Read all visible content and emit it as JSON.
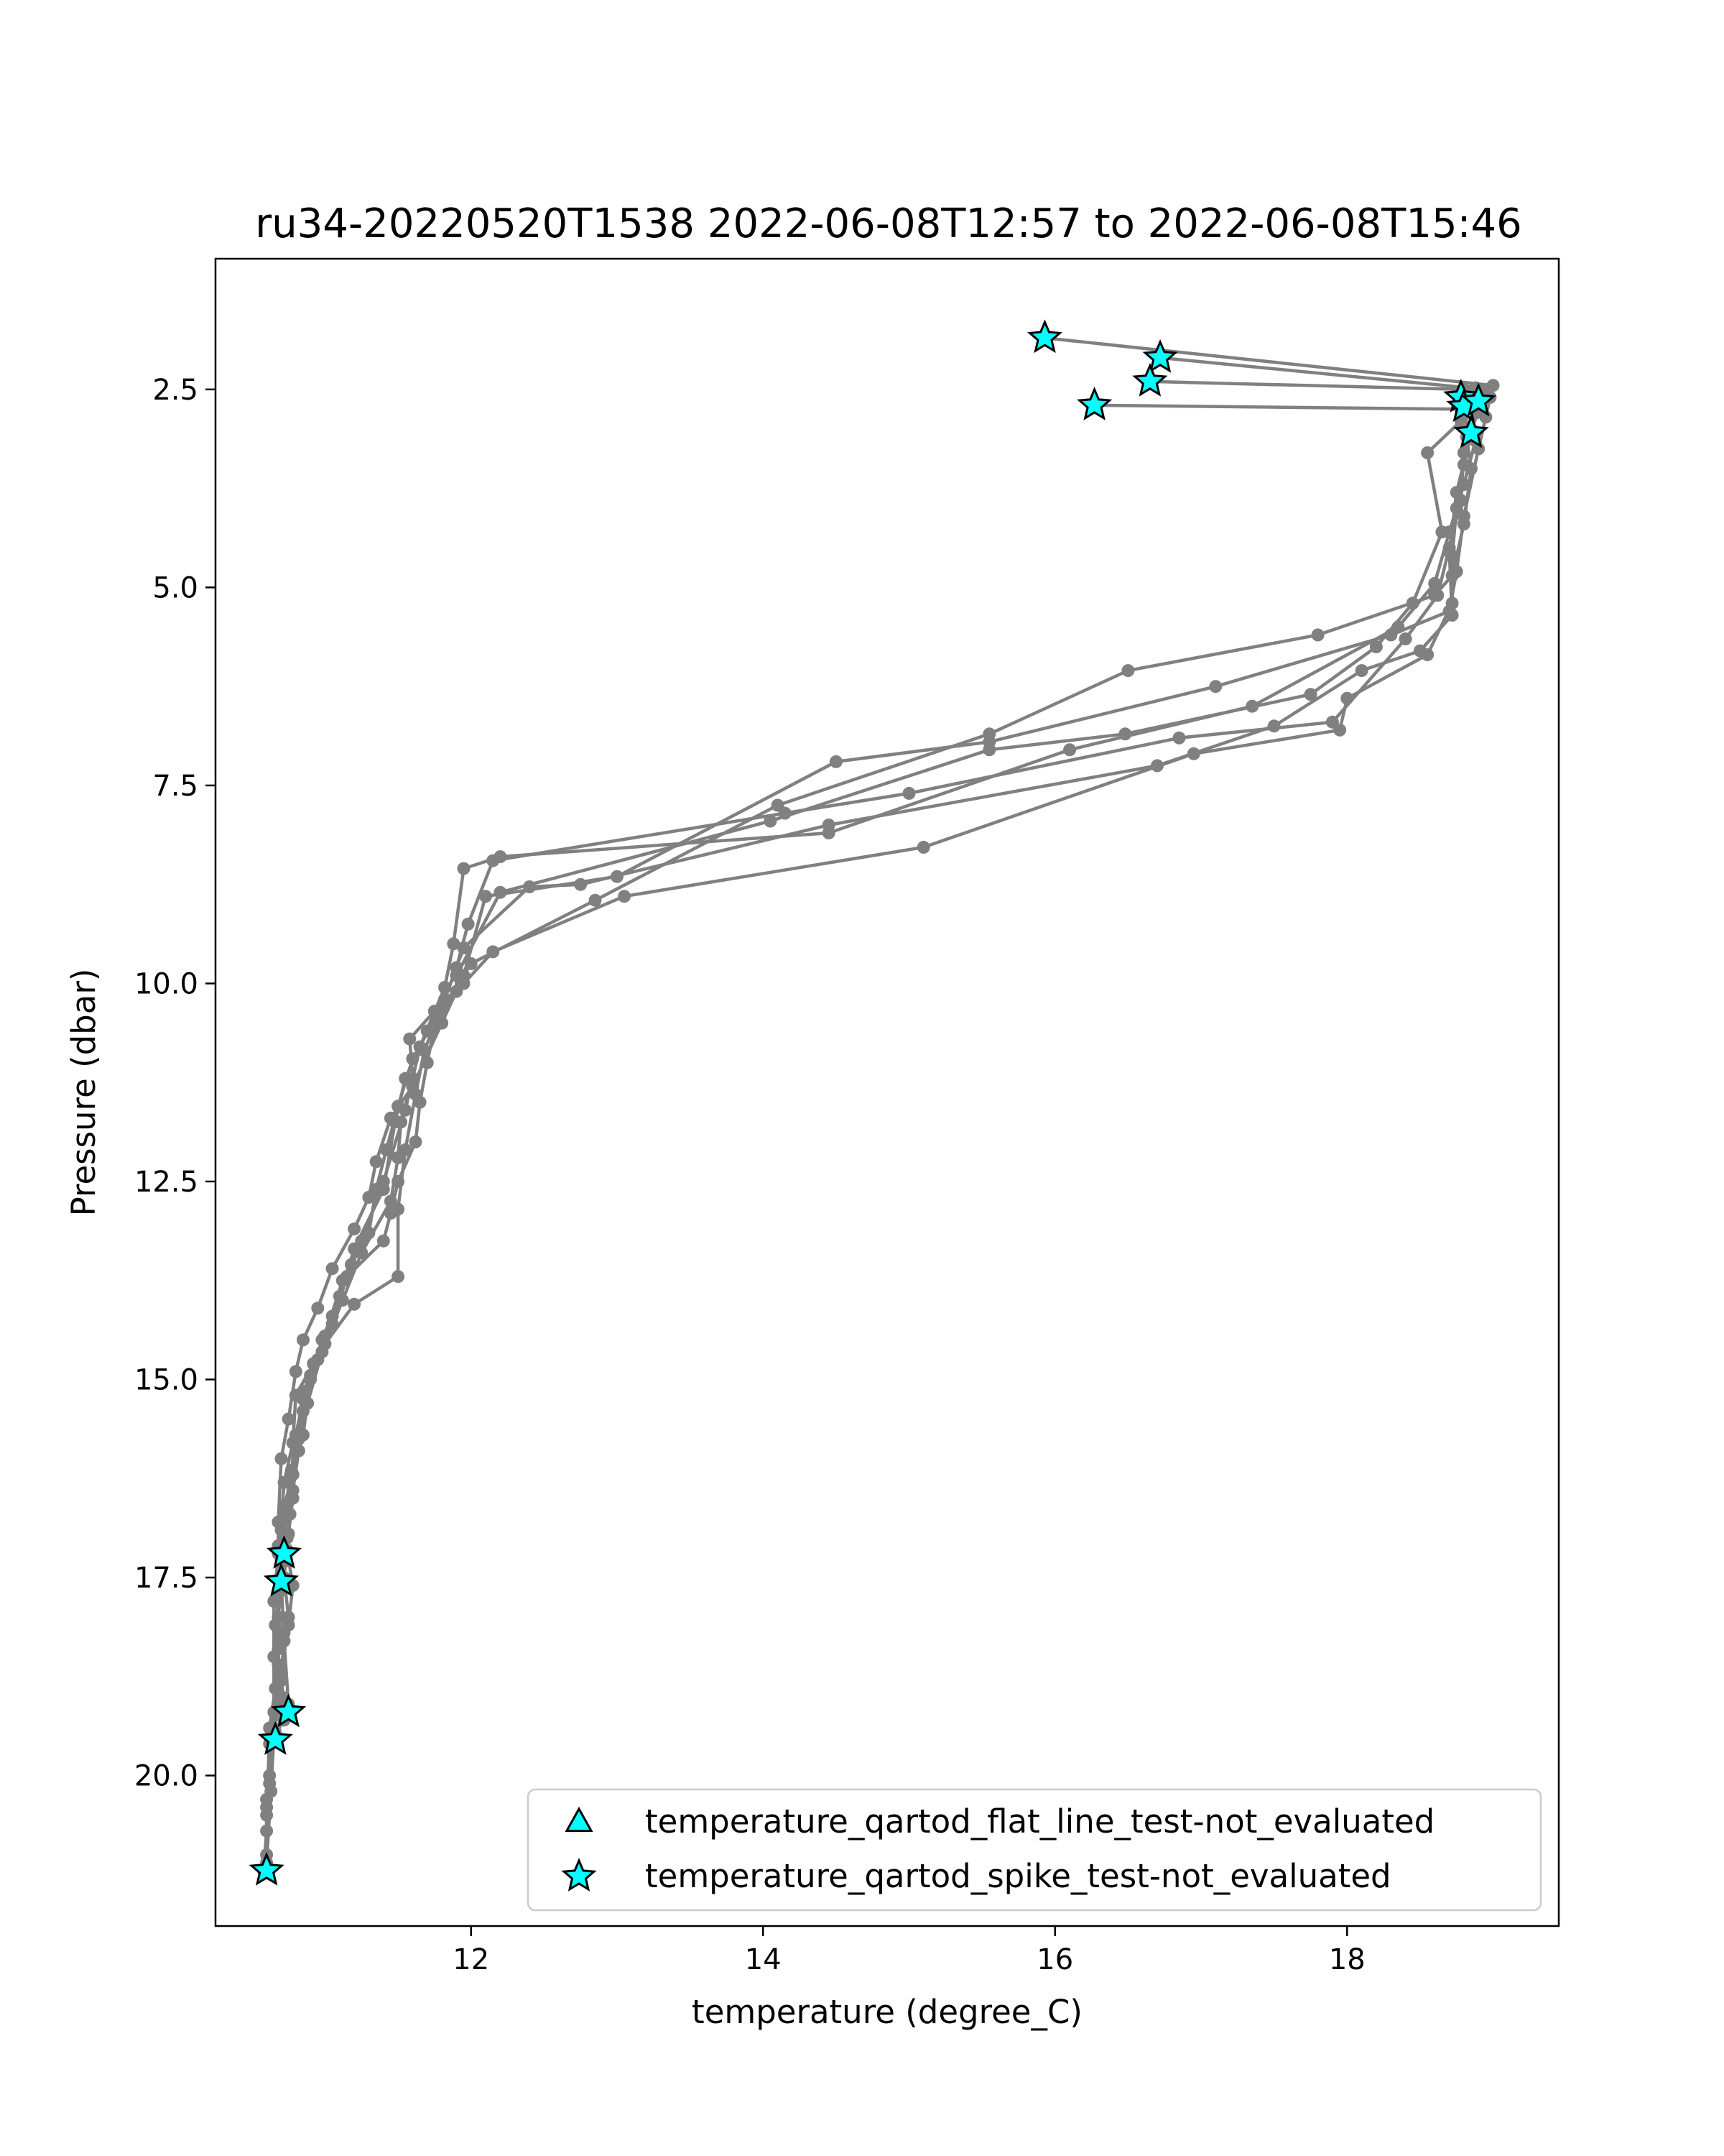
{
  "chart_data": {
    "type": "line",
    "title": "ru34-20220520T1538 2022-06-08T12:57 to 2022-06-08T15:46",
    "xlabel": "temperature (degree_C)",
    "ylabel": "Pressure (dbar)",
    "xlim": [
      10.25,
      19.45
    ],
    "ylim": [
      21.9,
      0.85
    ],
    "y_inverted": true,
    "x_ticks": [
      "12",
      "14",
      "16",
      "18"
    ],
    "y_ticks": [
      "2.5",
      "5.0",
      "7.5",
      "10.0",
      "12.5",
      "15.0",
      "17.5",
      "20.0"
    ],
    "grid": false,
    "legend_position": "lower-right",
    "colors": {
      "line": "#808080",
      "marker": "#808080",
      "flag": "#00ffff",
      "flag_edge": "#000000"
    },
    "series": [
      {
        "points": [
          [
            15.93,
            1.85
          ],
          [
            19.0,
            2.45
          ],
          [
            18.98,
            2.6
          ],
          [
            18.95,
            2.85
          ],
          [
            18.9,
            3.25
          ],
          [
            18.8,
            4.1
          ],
          [
            18.75,
            4.8
          ],
          [
            18.7,
            5.3
          ],
          [
            18.3,
            5.6
          ],
          [
            17.1,
            6.25
          ],
          [
            15.55,
            6.95
          ],
          [
            14.5,
            7.2
          ],
          [
            13.0,
            8.65
          ],
          [
            12.1,
            8.9
          ],
          [
            11.95,
            9.9
          ],
          [
            11.8,
            10.5
          ],
          [
            11.6,
            11.3
          ],
          [
            11.45,
            11.7
          ],
          [
            11.35,
            12.25
          ],
          [
            11.3,
            12.7
          ],
          [
            11.2,
            13.1
          ],
          [
            11.05,
            13.6
          ],
          [
            10.95,
            14.1
          ],
          [
            10.85,
            14.5
          ],
          [
            10.8,
            14.9
          ],
          [
            10.75,
            15.5
          ],
          [
            10.7,
            16.0
          ],
          [
            10.68,
            16.8
          ],
          [
            10.68,
            17.2
          ],
          [
            10.65,
            17.8
          ],
          [
            10.65,
            18.5
          ],
          [
            10.65,
            19.2
          ],
          [
            10.62,
            19.6
          ],
          [
            10.6,
            20.5
          ],
          [
            10.6,
            21.2
          ]
        ]
      },
      {
        "points": [
          [
            16.72,
            2.1
          ],
          [
            18.95,
            2.5
          ],
          [
            18.88,
            2.8
          ],
          [
            18.82,
            3.1
          ],
          [
            18.85,
            3.5
          ],
          [
            18.8,
            4.2
          ],
          [
            18.72,
            4.85
          ],
          [
            18.6,
            5.1
          ],
          [
            17.8,
            5.6
          ],
          [
            16.5,
            6.05
          ],
          [
            15.55,
            6.85
          ],
          [
            14.1,
            7.75
          ],
          [
            12.85,
            8.95
          ],
          [
            12.0,
            9.75
          ],
          [
            11.7,
            10.6
          ],
          [
            11.55,
            11.2
          ],
          [
            11.48,
            11.75
          ],
          [
            11.4,
            12.6
          ],
          [
            11.2,
            13.35
          ],
          [
            11.1,
            13.95
          ],
          [
            10.98,
            14.5
          ],
          [
            10.9,
            15.0
          ],
          [
            10.85,
            15.7
          ],
          [
            10.78,
            16.2
          ],
          [
            10.72,
            16.6
          ],
          [
            10.7,
            16.9
          ],
          [
            10.72,
            17.3
          ],
          [
            10.7,
            17.6
          ],
          [
            10.68,
            18.0
          ],
          [
            10.68,
            18.6
          ],
          [
            10.7,
            19.0
          ],
          [
            10.72,
            19.3
          ],
          [
            10.65,
            19.5
          ],
          [
            10.63,
            20.2
          ],
          [
            10.6,
            21.1
          ]
        ]
      },
      {
        "points": [
          [
            16.65,
            2.4
          ],
          [
            18.8,
            2.5
          ],
          [
            18.78,
            2.9
          ],
          [
            18.55,
            3.3
          ],
          [
            18.65,
            4.3
          ],
          [
            18.45,
            5.2
          ],
          [
            18.2,
            5.75
          ],
          [
            17.75,
            6.35
          ],
          [
            16.48,
            6.85
          ],
          [
            15.55,
            7.05
          ],
          [
            14.05,
            7.95
          ],
          [
            12.2,
            8.85
          ],
          [
            11.9,
            9.9
          ],
          [
            11.9,
            10.1
          ],
          [
            11.75,
            10.55
          ],
          [
            11.7,
            11.0
          ],
          [
            11.65,
            11.5
          ],
          [
            11.62,
            12.0
          ],
          [
            11.5,
            12.5
          ],
          [
            11.45,
            12.9
          ],
          [
            11.4,
            13.25
          ],
          [
            11.15,
            13.7
          ],
          [
            11.05,
            14.3
          ],
          [
            10.92,
            14.8
          ],
          [
            10.8,
            15.2
          ],
          [
            10.78,
            15.8
          ],
          [
            10.72,
            16.3
          ],
          [
            10.7,
            16.8
          ],
          [
            10.68,
            17.1
          ],
          [
            10.7,
            17.5
          ],
          [
            10.66,
            18.1
          ],
          [
            10.66,
            18.9
          ],
          [
            10.62,
            19.4
          ],
          [
            10.6,
            20.7
          ],
          [
            10.58,
            21.2
          ]
        ]
      },
      {
        "points": [
          [
            16.27,
            2.7
          ],
          [
            18.78,
            2.75
          ],
          [
            18.92,
            2.62
          ],
          [
            18.85,
            3.05
          ],
          [
            18.75,
            3.8
          ],
          [
            18.7,
            4.55
          ],
          [
            18.72,
            5.35
          ],
          [
            18.5,
            5.8
          ],
          [
            18.1,
            6.05
          ],
          [
            17.5,
            6.75
          ],
          [
            16.7,
            7.25
          ],
          [
            14.45,
            8.0
          ],
          [
            12.75,
            8.75
          ],
          [
            12.4,
            8.78
          ],
          [
            11.95,
            9.55
          ],
          [
            11.82,
            10.2
          ],
          [
            11.68,
            10.85
          ],
          [
            11.62,
            11.4
          ],
          [
            11.55,
            12.1
          ],
          [
            11.5,
            12.85
          ],
          [
            11.5,
            13.7
          ],
          [
            11.2,
            14.05
          ],
          [
            11.0,
            14.55
          ],
          [
            10.85,
            15.15
          ],
          [
            10.8,
            15.85
          ],
          [
            10.78,
            16.5
          ],
          [
            10.75,
            16.95
          ],
          [
            10.72,
            17.5
          ],
          [
            10.75,
            18.0
          ],
          [
            10.72,
            18.3
          ],
          [
            10.75,
            19.1
          ],
          [
            10.65,
            19.55
          ],
          [
            10.62,
            20.1
          ],
          [
            10.6,
            21.2
          ]
        ]
      },
      {
        "points": [
          [
            18.8,
            2.55
          ],
          [
            18.85,
            2.75
          ],
          [
            18.88,
            3.15
          ],
          [
            18.8,
            3.7
          ],
          [
            18.7,
            4.3
          ],
          [
            18.6,
            4.95
          ],
          [
            18.35,
            5.5
          ],
          [
            17.35,
            6.5
          ],
          [
            16.1,
            7.05
          ],
          [
            14.45,
            8.1
          ],
          [
            12.2,
            8.4
          ],
          [
            11.95,
            8.55
          ],
          [
            11.88,
            9.5
          ],
          [
            11.82,
            10.05
          ],
          [
            11.65,
            10.8
          ],
          [
            11.55,
            11.6
          ],
          [
            11.4,
            12.5
          ],
          [
            11.25,
            13.25
          ],
          [
            11.12,
            13.75
          ],
          [
            11.0,
            14.45
          ],
          [
            10.9,
            14.95
          ],
          [
            10.85,
            15.4
          ],
          [
            10.82,
            15.9
          ],
          [
            10.78,
            16.4
          ],
          [
            10.74,
            17.0
          ],
          [
            10.7,
            17.6
          ],
          [
            10.72,
            18.2
          ],
          [
            10.7,
            18.8
          ],
          [
            10.65,
            19.5
          ],
          [
            10.6,
            20.3
          ],
          [
            10.6,
            21.2
          ]
        ]
      },
      {
        "points": [
          [
            18.88,
            2.48
          ],
          [
            18.9,
            2.7
          ],
          [
            18.85,
            3.0
          ],
          [
            18.8,
            3.45
          ],
          [
            18.75,
            4.0
          ],
          [
            18.72,
            4.6
          ],
          [
            18.72,
            5.2
          ],
          [
            18.55,
            5.85
          ],
          [
            18.0,
            6.4
          ],
          [
            17.95,
            6.8
          ],
          [
            16.95,
            7.1
          ],
          [
            15.1,
            8.28
          ],
          [
            13.05,
            8.9
          ],
          [
            12.15,
            9.6
          ],
          [
            11.95,
            10.0
          ],
          [
            11.75,
            10.35
          ],
          [
            11.58,
            10.7
          ],
          [
            11.6,
            11.2
          ],
          [
            11.52,
            11.75
          ],
          [
            11.5,
            12.2
          ],
          [
            11.45,
            12.75
          ],
          [
            11.25,
            13.4
          ],
          [
            11.12,
            14.0
          ],
          [
            10.98,
            14.65
          ],
          [
            10.88,
            15.3
          ],
          [
            10.82,
            15.75
          ],
          [
            10.78,
            16.2
          ],
          [
            10.76,
            16.7
          ],
          [
            10.74,
            17.15
          ],
          [
            10.78,
            17.6
          ],
          [
            10.75,
            18.1
          ],
          [
            10.7,
            18.7
          ],
          [
            10.72,
            19.2
          ],
          [
            10.66,
            19.45
          ],
          [
            10.62,
            20.0
          ],
          [
            10.6,
            21.0
          ]
        ]
      },
      {
        "points": [
          [
            18.85,
            2.52
          ],
          [
            18.82,
            2.8
          ],
          [
            18.8,
            3.3
          ],
          [
            18.78,
            3.9
          ],
          [
            18.7,
            4.5
          ],
          [
            18.62,
            5.1
          ],
          [
            18.4,
            5.65
          ],
          [
            17.9,
            6.7
          ],
          [
            16.85,
            6.9
          ],
          [
            15.0,
            7.6
          ],
          [
            14.15,
            7.85
          ],
          [
            12.15,
            8.45
          ],
          [
            11.98,
            9.25
          ],
          [
            11.9,
            9.8
          ],
          [
            11.8,
            10.3
          ],
          [
            11.6,
            10.95
          ],
          [
            11.5,
            11.55
          ],
          [
            11.42,
            12.1
          ],
          [
            11.35,
            12.6
          ],
          [
            11.3,
            13.15
          ],
          [
            11.18,
            13.55
          ],
          [
            11.05,
            14.2
          ],
          [
            10.95,
            14.75
          ],
          [
            10.85,
            15.25
          ],
          [
            10.8,
            15.7
          ],
          [
            10.77,
            16.15
          ],
          [
            10.73,
            16.75
          ],
          [
            10.7,
            17.3
          ],
          [
            10.68,
            17.7
          ],
          [
            10.68,
            18.4
          ],
          [
            10.68,
            19.1
          ],
          [
            10.64,
            19.5
          ],
          [
            10.6,
            20.4
          ],
          [
            10.6,
            21.15
          ]
        ]
      }
    ],
    "flags": [
      {
        "test": "flat_line",
        "points": []
      },
      {
        "test": "spike",
        "points": [
          [
            15.93,
            1.85
          ],
          [
            16.72,
            2.1
          ],
          [
            16.65,
            2.4
          ],
          [
            16.27,
            2.7
          ],
          [
            18.78,
            2.6
          ],
          [
            18.8,
            2.72
          ],
          [
            18.9,
            2.65
          ],
          [
            18.85,
            3.05
          ],
          [
            10.72,
            17.2
          ],
          [
            10.7,
            17.55
          ],
          [
            10.75,
            19.2
          ],
          [
            10.66,
            19.55
          ],
          [
            10.6,
            21.2
          ]
        ]
      }
    ],
    "legend": [
      {
        "label": "temperature_qartod_flat_line_test-not_evaluated",
        "marker": "triangle"
      },
      {
        "label": "temperature_qartod_spike_test-not_evaluated",
        "marker": "star"
      }
    ]
  }
}
